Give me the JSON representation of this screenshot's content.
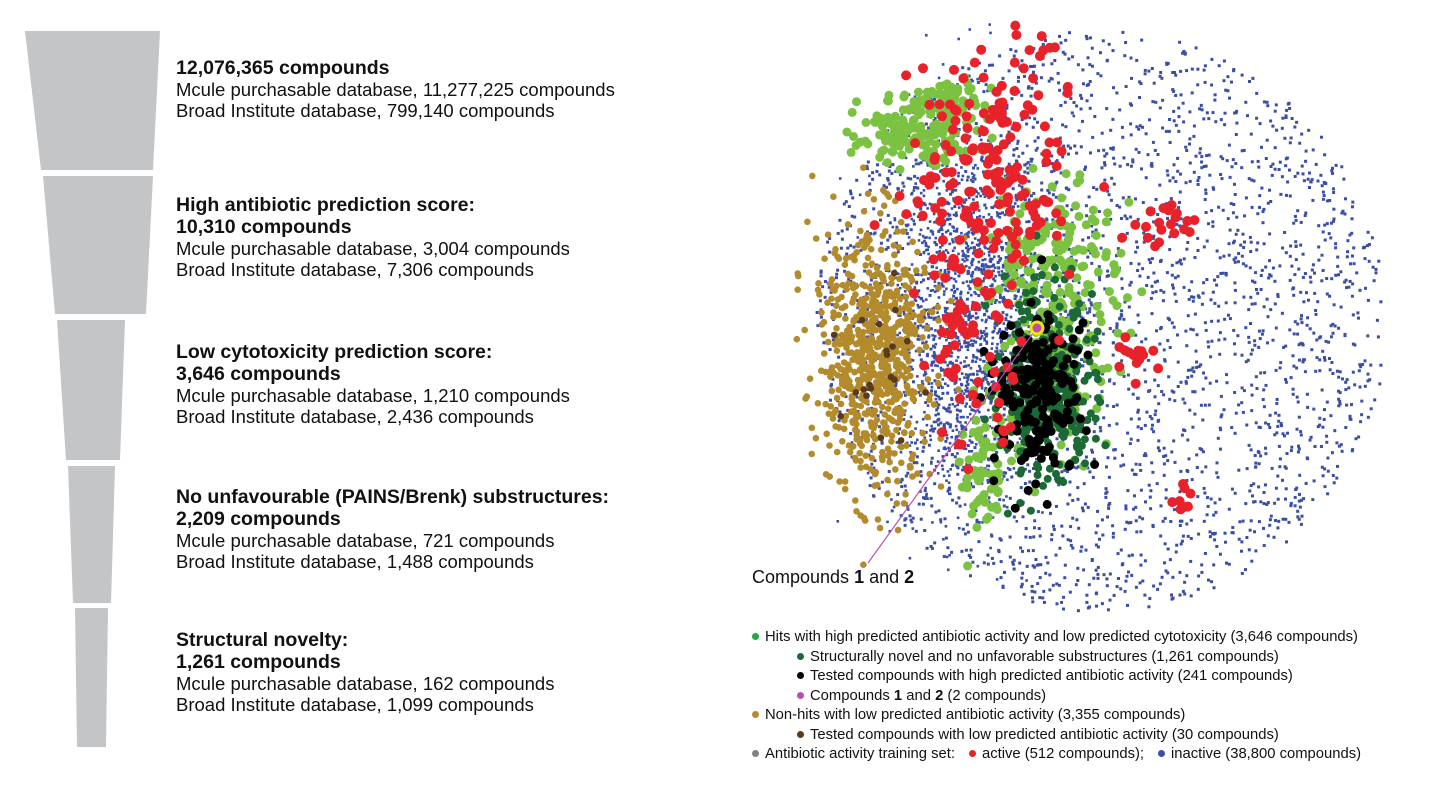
{
  "colors": {
    "funnel": "#c4c5c7",
    "hits": "#7cc242",
    "novel": "#1b6a35",
    "tested_high": "#000000",
    "compounds12": "#b94fb5",
    "nonhits": "#b38b2d",
    "tested_low": "#5a3a1a",
    "training": "#808285",
    "active": "#e8222a",
    "inactive": "#3a4ea3"
  },
  "stages": [
    {
      "heading": [
        "12,076,365 compounds"
      ],
      "lines": [
        "Mcule purchasable database, 11,277,225 compounds",
        "Broad Institute database, 799,140 compounds"
      ]
    },
    {
      "heading": [
        "High antibiotic prediction score:",
        "10,310 compounds"
      ],
      "lines": [
        "Mcule purchasable database, 3,004 compounds",
        "Broad Institute database, 7,306 compounds"
      ]
    },
    {
      "heading": [
        "Low cytotoxicity prediction score:",
        "3,646 compounds"
      ],
      "lines": [
        "Mcule purchasable database, 1,210 compounds",
        "Broad Institute database, 2,436 compounds"
      ]
    },
    {
      "heading": [
        "No unfavourable (PAINS/Brenk) substructures:",
        "2,209 compounds"
      ],
      "lines": [
        "Mcule purchasable database, 721 compounds",
        "Broad Institute database, 1,488 compounds"
      ]
    },
    {
      "heading": [
        "Structural novelty:",
        "1,261 compounds"
      ],
      "lines": [
        "Mcule purchasable database, 162 compounds",
        "Broad Institute database, 1,099 compounds"
      ]
    }
  ],
  "callout": {
    "pre": "Compounds ",
    "n1": "1",
    "mid": " and ",
    "n2": "2"
  },
  "legend": {
    "hits": "Hits with high predicted antibiotic activity and low predicted cytotoxicity (3,646 compounds)",
    "novel": "Structurally novel and no unfavorable substructures (1,261 compounds)",
    "tested_high": "Tested compounds with high predicted antibiotic activity (241 compounds)",
    "c12_pre": "Compounds ",
    "c12_n1": "1",
    "c12_mid": " and ",
    "c12_n2": "2",
    "c12_post": " (2 compounds)",
    "nonhits": "Non-hits with low predicted antibiotic activity (3,355 compounds)",
    "tested_low": "Tested compounds with low predicted antibiotic activity (30 compounds)",
    "training": "Antibiotic activity training set:",
    "active": "active (512 compounds);",
    "inactive": "inactive (38,800 compounds)"
  }
}
